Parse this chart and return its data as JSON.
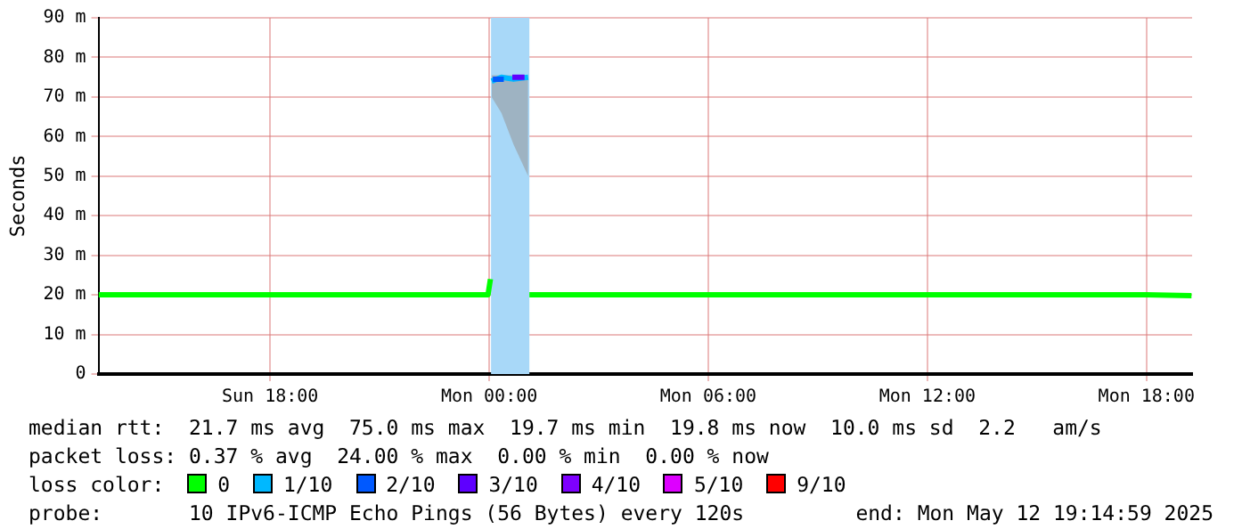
{
  "chart_data": {
    "type": "line",
    "ylabel": "Seconds",
    "legend_title": "loss color:",
    "xlim": [
      "2025-05-11T13:18",
      "2025-05-12T19:15"
    ],
    "xticks": [
      {
        "value": "2025-05-11T18:00",
        "label": "Sun 18:00"
      },
      {
        "value": "2025-05-12T00:00",
        "label": "Mon 00:00"
      },
      {
        "value": "2025-05-12T06:00",
        "label": "Mon 06:00"
      },
      {
        "value": "2025-05-12T12:00",
        "label": "Mon 12:00"
      },
      {
        "value": "2025-05-12T18:00",
        "label": "Mon 18:00"
      }
    ],
    "ylim": [
      0,
      90
    ],
    "yticks": [
      0,
      {
        "value": 10,
        "label": "10 m"
      },
      {
        "value": 20,
        "label": "20 m"
      },
      {
        "value": 30,
        "label": "30 m"
      },
      {
        "value": 40,
        "label": "40 m"
      },
      {
        "value": 50,
        "label": "50 m"
      },
      {
        "value": 60,
        "label": "60 m"
      },
      {
        "value": 70,
        "label": "70 m"
      },
      {
        "value": 80,
        "label": "80 m"
      },
      {
        "value": 90,
        "label": "90 m"
      }
    ],
    "grid": true,
    "legend": "bottom",
    "bands": [
      {
        "axis": "x",
        "from": "2025-05-12T00:03",
        "to": "2025-05-12T01:06",
        "color": "#a8d8f8"
      }
    ],
    "series": [
      {
        "name": "0",
        "color": "#00ff00",
        "x": [
          "2025-05-11T13:18",
          "2025-05-11T15:00",
          "2025-05-11T18:00",
          "2025-05-11T21:00",
          "2025-05-11T23:58",
          "2025-05-12T00:02",
          "2025-05-12T00:30",
          "2025-05-12T01:06",
          "2025-05-12T03:00",
          "2025-05-12T06:00",
          "2025-05-12T09:00",
          "2025-05-12T12:00",
          "2025-05-12T15:00",
          "2025-05-12T18:00",
          "2025-05-12T19:14"
        ],
        "values": [
          20,
          20,
          20,
          20,
          20,
          24,
          null,
          20,
          20,
          20,
          20,
          20,
          20,
          20,
          19.8
        ]
      },
      {
        "name": "1/10",
        "color": "#00b8ff",
        "x": [
          "2025-05-12T00:04",
          "2025-05-12T00:20",
          "2025-05-12T00:40",
          "2025-05-12T01:04"
        ],
        "values": [
          74,
          75,
          74.5,
          75
        ],
        "lower": [
          70,
          66,
          58,
          50
        ],
        "upper": [
          75.5,
          75.5,
          75.5,
          75.5
        ]
      },
      {
        "name": "2/10",
        "color": "#0059ff",
        "x": [
          "2025-05-12T00:06",
          "2025-05-12T00:24"
        ],
        "values": [
          74.5,
          74.5
        ]
      },
      {
        "name": "3/10",
        "color": "#5e00ff",
        "x": [
          "2025-05-12T00:38",
          "2025-05-12T00:58"
        ],
        "values": [
          75,
          75
        ]
      },
      {
        "name": "4/10",
        "color": "#7e00ff"
      },
      {
        "name": "5/10",
        "color": "#dd00ff"
      },
      {
        "name": "9/10",
        "color": "#ff0000"
      }
    ],
    "annotations": [
      "median rtt:  21.7 ms avg  75.0 ms max  19.7 ms min  19.8 ms now  10.0 ms sd  2.2   am/s",
      "packet loss: 0.37 % avg  24.00 % max  0.00 % min  0.00 % now",
      "probe:       10 IPv6-ICMP Echo Pings (56 Bytes) every 120s",
      "end: Mon May 12 19:14:59 2025"
    ]
  }
}
